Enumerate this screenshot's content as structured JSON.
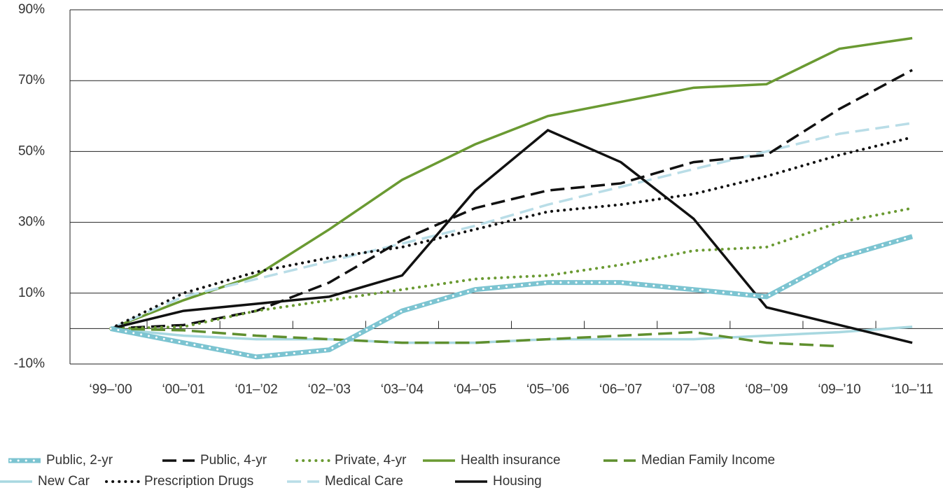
{
  "chart_data": {
    "type": "line",
    "categories": [
      "‘99–’00",
      "‘00–’01",
      "‘01–’02",
      "‘02–’03",
      "‘03–’04",
      "‘04–’05",
      "‘05–’06",
      "‘06–’07",
      "‘07–’08",
      "‘08–’09",
      "‘09–’10",
      "‘10–’11"
    ],
    "ylim": [
      -10,
      90
    ],
    "yticks": [
      {
        "value": 90,
        "label": "90%"
      },
      {
        "value": 70,
        "label": "70%"
      },
      {
        "value": 50,
        "label": "50%"
      },
      {
        "value": 30,
        "label": "30%"
      },
      {
        "value": 10,
        "label": "10%"
      },
      {
        "value": -10,
        "label": "-10%"
      }
    ],
    "grid": true,
    "series": [
      {
        "name": "Public, 2-yr",
        "color": "#7cc4d1",
        "style": "dotted-band",
        "values": [
          0,
          -4,
          -8,
          -6,
          5,
          11,
          13,
          13,
          11,
          9,
          20,
          26
        ]
      },
      {
        "name": "Public, 4-yr",
        "color": "#111111",
        "style": "dashed",
        "values": [
          0,
          1,
          5,
          13,
          25,
          34,
          39,
          41,
          47,
          49,
          62,
          73
        ]
      },
      {
        "name": "Private, 4-yr",
        "color": "#6a9a32",
        "style": "dotted",
        "values": [
          0,
          0.5,
          5,
          8,
          11,
          14,
          15,
          18,
          22,
          23,
          30,
          34
        ]
      },
      {
        "name": "Health insurance",
        "color": "#6a9a32",
        "style": "solid",
        "values": [
          0,
          8,
          15,
          28,
          42,
          52,
          60,
          64,
          68,
          69,
          79,
          82
        ]
      },
      {
        "name": "Median Family Income",
        "color": "#5f8f2e",
        "style": "dashed",
        "values": [
          0,
          -0.5,
          -2,
          -3,
          -4,
          -4,
          -3,
          -2,
          -1,
          -4,
          -5,
          null
        ]
      },
      {
        "name": "New Car",
        "color": "#a8d8e0",
        "style": "solid",
        "values": [
          0,
          -2,
          -3,
          -3,
          -4,
          -4,
          -3,
          -3,
          -3,
          -2,
          -1,
          0.5
        ]
      },
      {
        "name": "Prescription Drugs",
        "color": "#111111",
        "style": "dotted",
        "values": [
          0,
          10,
          16,
          20,
          23,
          28,
          33,
          35,
          38,
          43,
          49,
          54
        ]
      },
      {
        "name": "Medical Care",
        "color": "#b9dde7",
        "style": "dashed",
        "values": [
          0,
          9,
          14,
          19,
          24,
          29,
          35,
          40,
          45,
          50,
          55,
          58
        ]
      },
      {
        "name": "Housing",
        "color": "#111111",
        "style": "solid",
        "values": [
          0,
          5,
          7,
          9,
          15,
          39,
          56,
          47,
          31,
          6,
          1,
          -4
        ]
      }
    ]
  }
}
